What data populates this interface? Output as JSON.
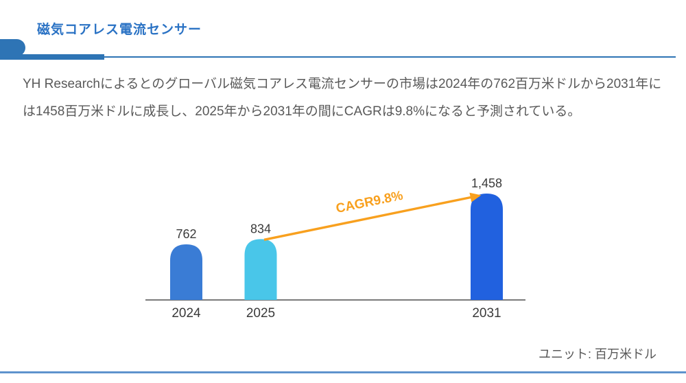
{
  "header": {
    "title": "磁気コアレス電流センサー"
  },
  "description": "YH Researchによるとのグローバル磁気コアレス電流センサーの市場は2024年の762百万米ドルから2031年には1458百万米ドルに成長し、2025年から2031年の間にCAGRは9.8%になると予測されている。",
  "chart_data": {
    "type": "bar",
    "categories": [
      "2024",
      "2025",
      "2031"
    ],
    "values": [
      762,
      834,
      1458
    ],
    "value_labels": [
      "762",
      "834",
      "1,458"
    ],
    "bar_colors": [
      "#3a7cd5",
      "#49c6e9",
      "#2161df"
    ],
    "annotation": {
      "label": "CAGR9.8%",
      "color": "#f8a01e",
      "from_category": "2025",
      "to_category": "2031"
    },
    "unit_label": "ユニット: 百万米ドル",
    "title": "",
    "xlabel": "",
    "ylabel": "",
    "ylim": [
      0,
      1458
    ],
    "grid": false,
    "legend": false
  },
  "colors": {
    "accent": "#2e74b5",
    "title": "#2a72c4",
    "body_text": "#595959",
    "chart_text": "#3a3a3a",
    "divider": "#5e93cd"
  }
}
